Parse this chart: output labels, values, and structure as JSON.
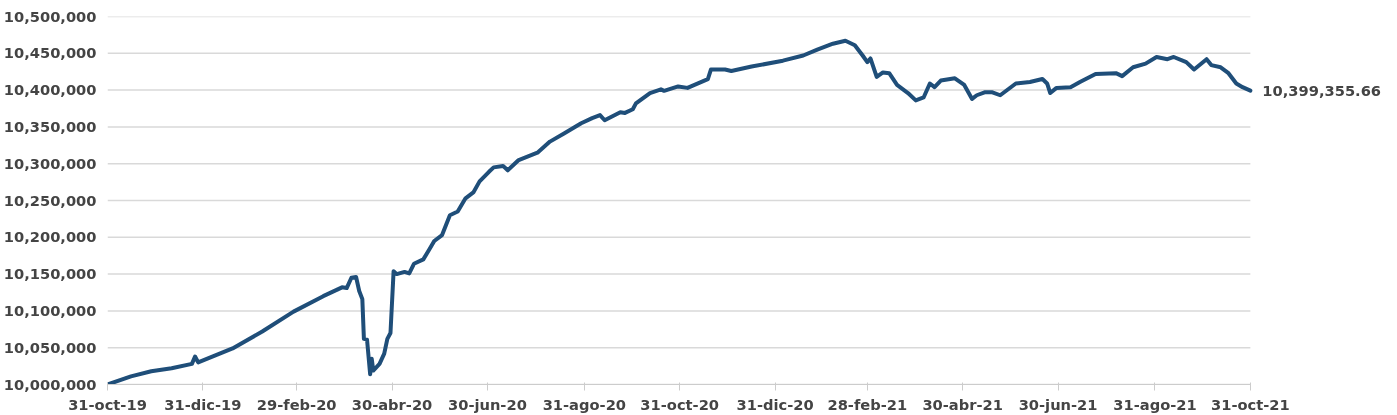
{
  "chart_data": {
    "type": "line",
    "x": [
      "2019-10-31",
      "2019-11-15",
      "2019-11-28",
      "2019-12-11",
      "2019-12-24",
      "2019-12-26",
      "2019-12-28",
      "2020-01-19",
      "2020-02-07",
      "2020-02-27",
      "2020-03-17",
      "2020-03-29",
      "2020-04-01",
      "2020-04-04",
      "2020-04-07",
      "2020-04-09",
      "2020-04-11",
      "2020-04-12",
      "2020-04-14",
      "2020-04-16",
      "2020-04-17",
      "2020-04-18",
      "2020-04-22",
      "2020-04-25",
      "2020-04-27",
      "2020-04-29",
      "2020-05-01",
      "2020-05-03",
      "2020-05-08",
      "2020-05-11",
      "2020-05-14",
      "2020-05-20",
      "2020-05-24",
      "2020-05-27",
      "2020-06-01",
      "2020-06-06",
      "2020-06-11",
      "2020-06-16",
      "2020-06-21",
      "2020-06-25",
      "2020-07-01",
      "2020-07-04",
      "2020-07-10",
      "2020-07-13",
      "2020-07-20",
      "2020-08-01",
      "2020-08-09",
      "2020-08-18",
      "2020-08-29",
      "2020-09-05",
      "2020-09-10",
      "2020-09-13",
      "2020-09-23",
      "2020-09-26",
      "2020-10-01",
      "2020-10-03",
      "2020-10-12",
      "2020-10-19",
      "2020-10-21",
      "2020-10-30",
      "2020-11-05",
      "2020-11-18",
      "2020-11-20",
      "2020-11-29",
      "2020-12-03",
      "2020-12-16",
      "2021-01-05",
      "2021-01-18",
      "2021-01-27",
      "2021-02-06",
      "2021-02-14",
      "2021-02-20",
      "2021-02-25",
      "2021-02-28",
      "2021-03-02",
      "2021-03-06",
      "2021-03-10",
      "2021-03-14",
      "2021-03-19",
      "2021-03-26",
      "2021-03-31",
      "2021-04-05",
      "2021-04-09",
      "2021-04-12",
      "2021-04-16",
      "2021-04-25",
      "2021-05-01",
      "2021-05-06",
      "2021-05-09",
      "2021-05-14",
      "2021-05-19",
      "2021-05-24",
      "2021-06-03",
      "2021-06-12",
      "2021-06-20",
      "2021-06-23",
      "2021-06-25",
      "2021-06-29",
      "2021-07-08",
      "2021-07-14",
      "2021-07-24",
      "2021-08-06",
      "2021-08-10",
      "2021-08-17",
      "2021-08-25",
      "2021-09-01",
      "2021-09-08",
      "2021-09-12",
      "2021-09-20",
      "2021-09-25",
      "2021-10-03",
      "2021-10-06",
      "2021-10-12",
      "2021-10-17",
      "2021-10-22",
      "2021-10-26",
      "2021-10-31"
    ],
    "series": [
      {
        "color": "#1f4e79",
        "values": [
          10000000,
          10011000,
          10018000,
          10022000,
          10028000,
          10038000,
          10030000,
          10049000,
          10072000,
          10099000,
          10120000,
          10132000,
          10131000,
          10145000,
          10146000,
          10127000,
          10116000,
          10062000,
          10061000,
          10014000,
          10035000,
          10019000,
          10028000,
          10042000,
          10062000,
          10070000,
          10154000,
          10150000,
          10153000,
          10151000,
          10164000,
          10170000,
          10184000,
          10195000,
          10203000,
          10230000,
          10235000,
          10253000,
          10261000,
          10276000,
          10289000,
          10295000,
          10297000,
          10291000,
          10305000,
          10315000,
          10330000,
          10341000,
          10355000,
          10362000,
          10366000,
          10359000,
          10370000,
          10369000,
          10374000,
          10382000,
          10396000,
          10401000,
          10399000,
          10405000,
          10403000,
          10415000,
          10428000,
          10428000,
          10426000,
          10432000,
          10440000,
          10447000,
          10455000,
          10463000,
          10467000,
          10461000,
          10447000,
          10438000,
          10443000,
          10418000,
          10424000,
          10423000,
          10407000,
          10396000,
          10386000,
          10390000,
          10409000,
          10404000,
          10413000,
          10416000,
          10407000,
          10388000,
          10393000,
          10397000,
          10397000,
          10393000,
          10409000,
          10411000,
          10415000,
          10409000,
          10396000,
          10403000,
          10404000,
          10411000,
          10422000,
          10423000,
          10419000,
          10431000,
          10436000,
          10445000,
          10442000,
          10445000,
          10438000,
          10428000,
          10442000,
          10434000,
          10431000,
          10423000,
          10409000,
          10404000,
          10399355.66
        ]
      }
    ],
    "xlim": [
      "2019-10-31",
      "2021-10-31"
    ],
    "xticks": [
      {
        "value": "2019-10-31",
        "label": "31-oct-19"
      },
      {
        "value": "2019-12-31",
        "label": "31-dic-19"
      },
      {
        "value": "2020-02-29",
        "label": "29-feb-20"
      },
      {
        "value": "2020-04-30",
        "label": "30-abr-20"
      },
      {
        "value": "2020-06-30",
        "label": "30-jun-20"
      },
      {
        "value": "2020-08-31",
        "label": "31-ago-20"
      },
      {
        "value": "2020-10-31",
        "label": "31-oct-20"
      },
      {
        "value": "2020-12-31",
        "label": "31-dic-20"
      },
      {
        "value": "2021-02-28",
        "label": "28-feb-21"
      },
      {
        "value": "2021-04-30",
        "label": "30-abr-21"
      },
      {
        "value": "2021-06-30",
        "label": "30-jun-21"
      },
      {
        "value": "2021-08-31",
        "label": "31-ago-21"
      },
      {
        "value": "2021-10-31",
        "label": "31-oct-21"
      }
    ],
    "ylim": [
      10000000,
      10500000
    ],
    "yticks": [
      {
        "value": 10000000,
        "label": "10,000,000"
      },
      {
        "value": 10050000,
        "label": "10,050,000"
      },
      {
        "value": 10100000,
        "label": "10,100,000"
      },
      {
        "value": 10150000,
        "label": "10,150,000"
      },
      {
        "value": 10200000,
        "label": "10,200,000"
      },
      {
        "value": 10250000,
        "label": "10,250,000"
      },
      {
        "value": 10300000,
        "label": "10,300,000"
      },
      {
        "value": 10350000,
        "label": "10,350,000"
      },
      {
        "value": 10400000,
        "label": "10,400,000"
      },
      {
        "value": 10450000,
        "label": "10,450,000"
      },
      {
        "value": 10500000,
        "label": "10,500,000"
      }
    ],
    "grid": "y",
    "annotations": [
      {
        "text": "10,399,355.66",
        "x": "2021-10-31",
        "y": 10399355.66
      }
    ]
  }
}
